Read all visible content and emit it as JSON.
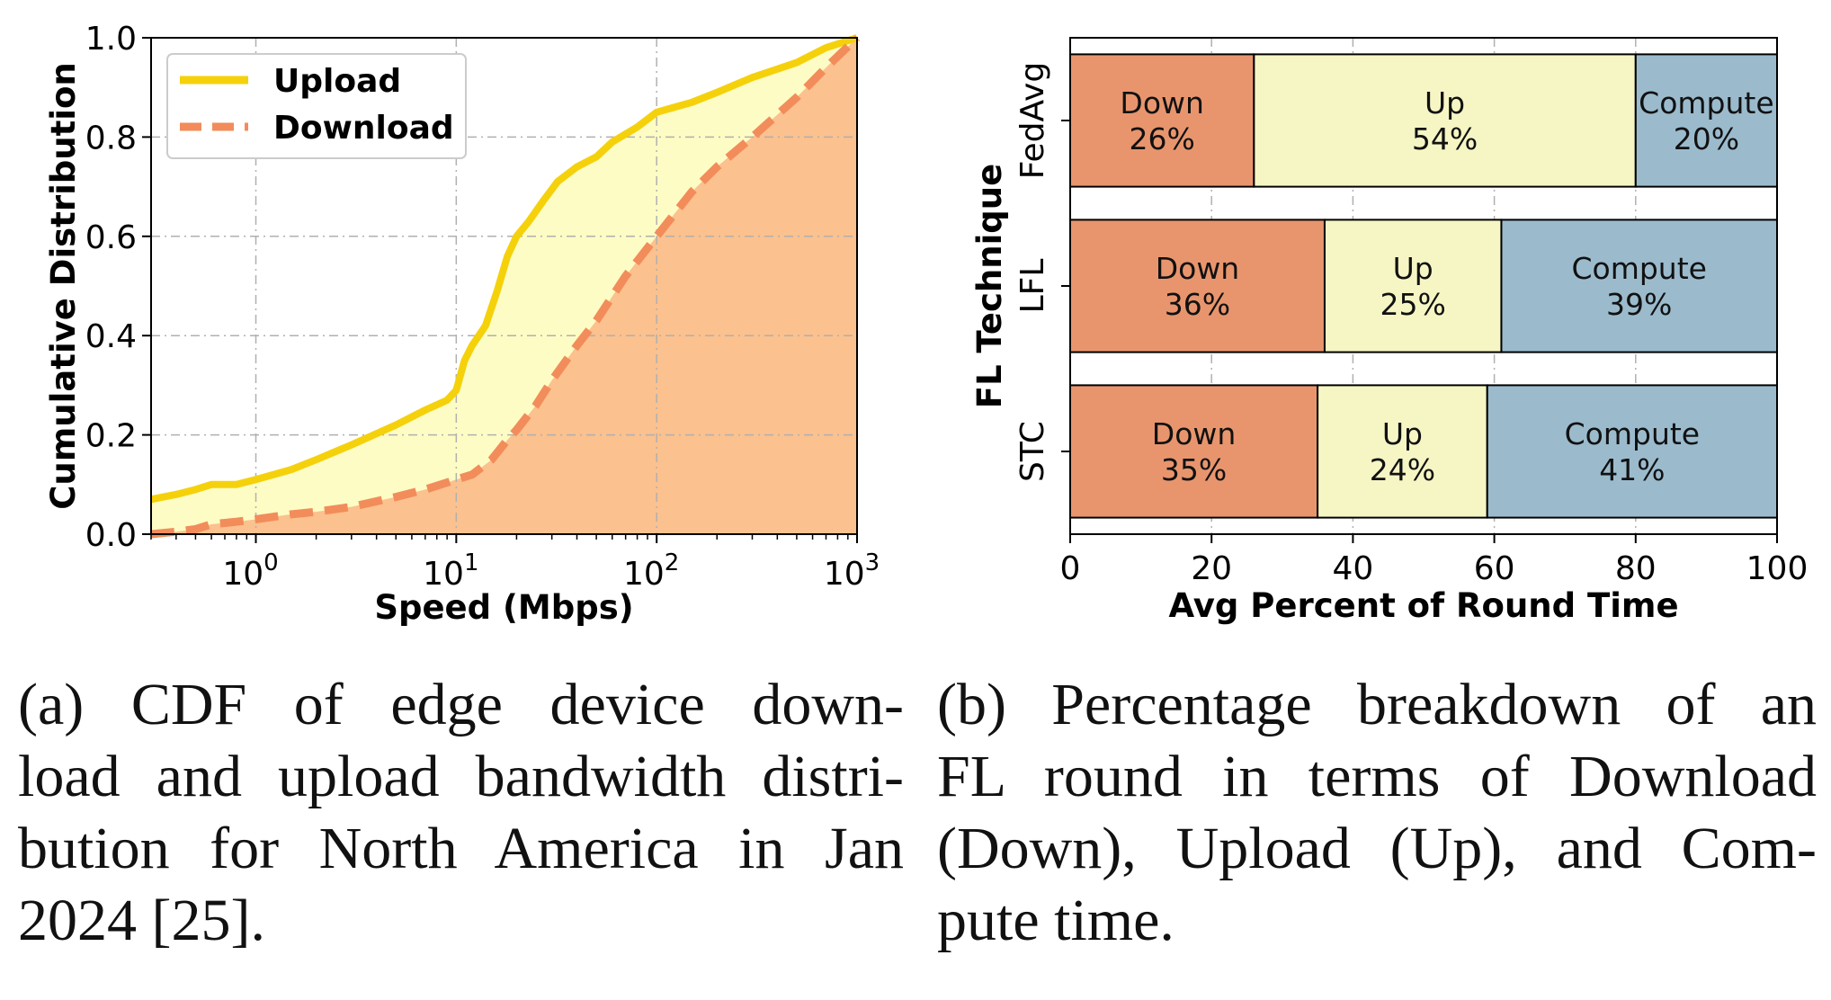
{
  "chart_data": [
    {
      "type": "line",
      "xlabel": "Speed (Mbps)",
      "ylabel": "Cumulative Distribution",
      "xscale": "log",
      "xlim": [
        0.3,
        1000
      ],
      "ylim": [
        0.0,
        1.0
      ],
      "x_ticks": [
        {
          "base": "10",
          "exp": "0",
          "value": 1
        },
        {
          "base": "10",
          "exp": "1",
          "value": 10
        },
        {
          "base": "10",
          "exp": "2",
          "value": 100
        },
        {
          "base": "10",
          "exp": "3",
          "value": 1000
        }
      ],
      "y_ticks": [
        "0.0",
        "0.2",
        "0.4",
        "0.6",
        "0.8",
        "1.0"
      ],
      "grid": true,
      "legend_position": "top-left",
      "series": [
        {
          "name": "Upload",
          "style": "solid",
          "color": "#f5d10b",
          "fill_color": "#fdfcc4",
          "x": [
            0.3,
            0.4,
            0.5,
            0.6,
            0.8,
            1,
            1.5,
            2,
            3,
            5,
            7,
            9,
            10,
            11,
            12,
            14,
            16,
            18,
            20,
            23,
            27,
            32,
            40,
            50,
            60,
            80,
            100,
            150,
            200,
            300,
            500,
            700,
            1000
          ],
          "y": [
            0.07,
            0.08,
            0.09,
            0.1,
            0.1,
            0.11,
            0.13,
            0.15,
            0.18,
            0.22,
            0.25,
            0.27,
            0.29,
            0.35,
            0.38,
            0.42,
            0.49,
            0.56,
            0.6,
            0.63,
            0.67,
            0.71,
            0.74,
            0.76,
            0.79,
            0.82,
            0.85,
            0.87,
            0.89,
            0.92,
            0.95,
            0.98,
            1.0
          ]
        },
        {
          "name": "Download",
          "style": "dashed",
          "color": "#f28c5b",
          "fill_color": "#fbc18e",
          "x": [
            0.3,
            0.4,
            0.5,
            0.6,
            0.8,
            1,
            1.5,
            2,
            3,
            5,
            7,
            10,
            12,
            15,
            18,
            20,
            25,
            30,
            40,
            50,
            70,
            100,
            150,
            200,
            300,
            500,
            700,
            1000
          ],
          "y": [
            0.0,
            0.005,
            0.01,
            0.02,
            0.025,
            0.03,
            0.04,
            0.045,
            0.055,
            0.075,
            0.09,
            0.11,
            0.12,
            0.15,
            0.19,
            0.21,
            0.26,
            0.31,
            0.38,
            0.43,
            0.52,
            0.6,
            0.69,
            0.74,
            0.8,
            0.88,
            0.94,
            1.0
          ]
        }
      ]
    },
    {
      "type": "bar",
      "orientation": "horizontal",
      "stacked": true,
      "xlabel": "Avg Percent of Round Time",
      "ylabel": "FL Technique",
      "xlim": [
        0,
        100
      ],
      "x_ticks": [
        "0",
        "20",
        "40",
        "60",
        "80",
        "100"
      ],
      "grid": true,
      "categories": [
        "FedAvg",
        "LFL",
        "STC"
      ],
      "series": [
        {
          "name": "Down",
          "color": "#e8956e",
          "values": [
            26,
            36,
            35
          ],
          "labels": [
            "26%",
            "36%",
            "35%"
          ]
        },
        {
          "name": "Up",
          "color": "#f6f6c5",
          "values": [
            54,
            25,
            24
          ],
          "labels": [
            "54%",
            "25%",
            "24%"
          ]
        },
        {
          "name": "Compute",
          "color": "#9bbbcd",
          "values": [
            20,
            39,
            41
          ],
          "labels": [
            "20%",
            "39%",
            "41%"
          ]
        }
      ]
    }
  ],
  "captions": {
    "a": [
      "(a) CDF of edge device down-",
      "load and upload bandwidth distri-",
      "bution for North America in Jan",
      "2024 [25]."
    ],
    "b": [
      "(b) Percentage breakdown of an",
      "FL round in terms of Download",
      "(Down), Upload (Up), and Com-",
      "pute time."
    ]
  }
}
